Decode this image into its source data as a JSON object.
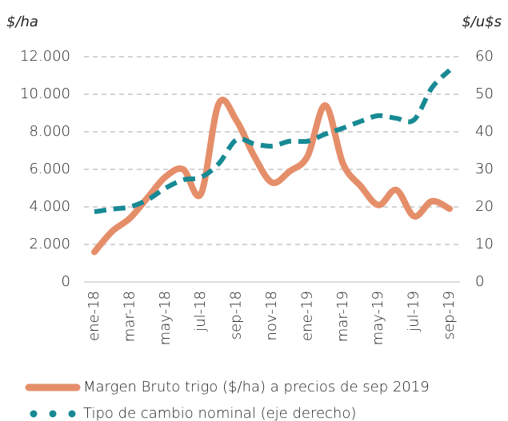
{
  "chart_data": {
    "type": "line",
    "y_label": "$/ha",
    "y2_label": "$/u$s",
    "categories": [
      "ene-18",
      null,
      "mar-18",
      null,
      "may-18",
      null,
      "jul-18",
      null,
      "sep-18",
      null,
      "nov-18",
      null,
      "ene-19",
      null,
      "mar-19",
      null,
      "may-19",
      null,
      "jul-19",
      null,
      "sep-19"
    ],
    "series": [
      {
        "name": "Margen Bruto trigo ($/ha) a precios de sep 2019",
        "color": "#e58e6a",
        "axis": "y",
        "values": [
          1600,
          2700,
          3400,
          4500,
          5600,
          6000,
          4700,
          9500,
          8600,
          6700,
          5300,
          5900,
          6700,
          9400,
          6300,
          5100,
          4100,
          4900,
          3500,
          4300,
          3900
        ]
      },
      {
        "name": "Tipo de cambio nominal (eje derecho)",
        "color": "#178a94",
        "axis": "y2",
        "values": [
          18.7,
          19.4,
          20,
          21.9,
          25,
          27.2,
          27.9,
          31.5,
          37.9,
          36.8,
          36.2,
          37.5,
          37.5,
          39.4,
          41,
          42.8,
          44.3,
          43.6,
          43.2,
          51.7,
          56.4
        ]
      }
    ],
    "ylim": [
      0,
      12000
    ],
    "yticks": [
      0,
      {
        "value": 2000,
        "label": "2.000"
      },
      {
        "value": 4000,
        "label": "4.000"
      },
      {
        "value": 6000,
        "label": "6.000"
      },
      {
        "value": 8000,
        "label": "8.000"
      },
      {
        "value": 10000,
        "label": "10.000"
      },
      {
        "value": 12000,
        "label": "12.000"
      }
    ],
    "y2lim": [
      0,
      60
    ],
    "y2ticks": [
      0,
      10,
      20,
      30,
      40,
      50,
      60
    ],
    "grid": true
  }
}
